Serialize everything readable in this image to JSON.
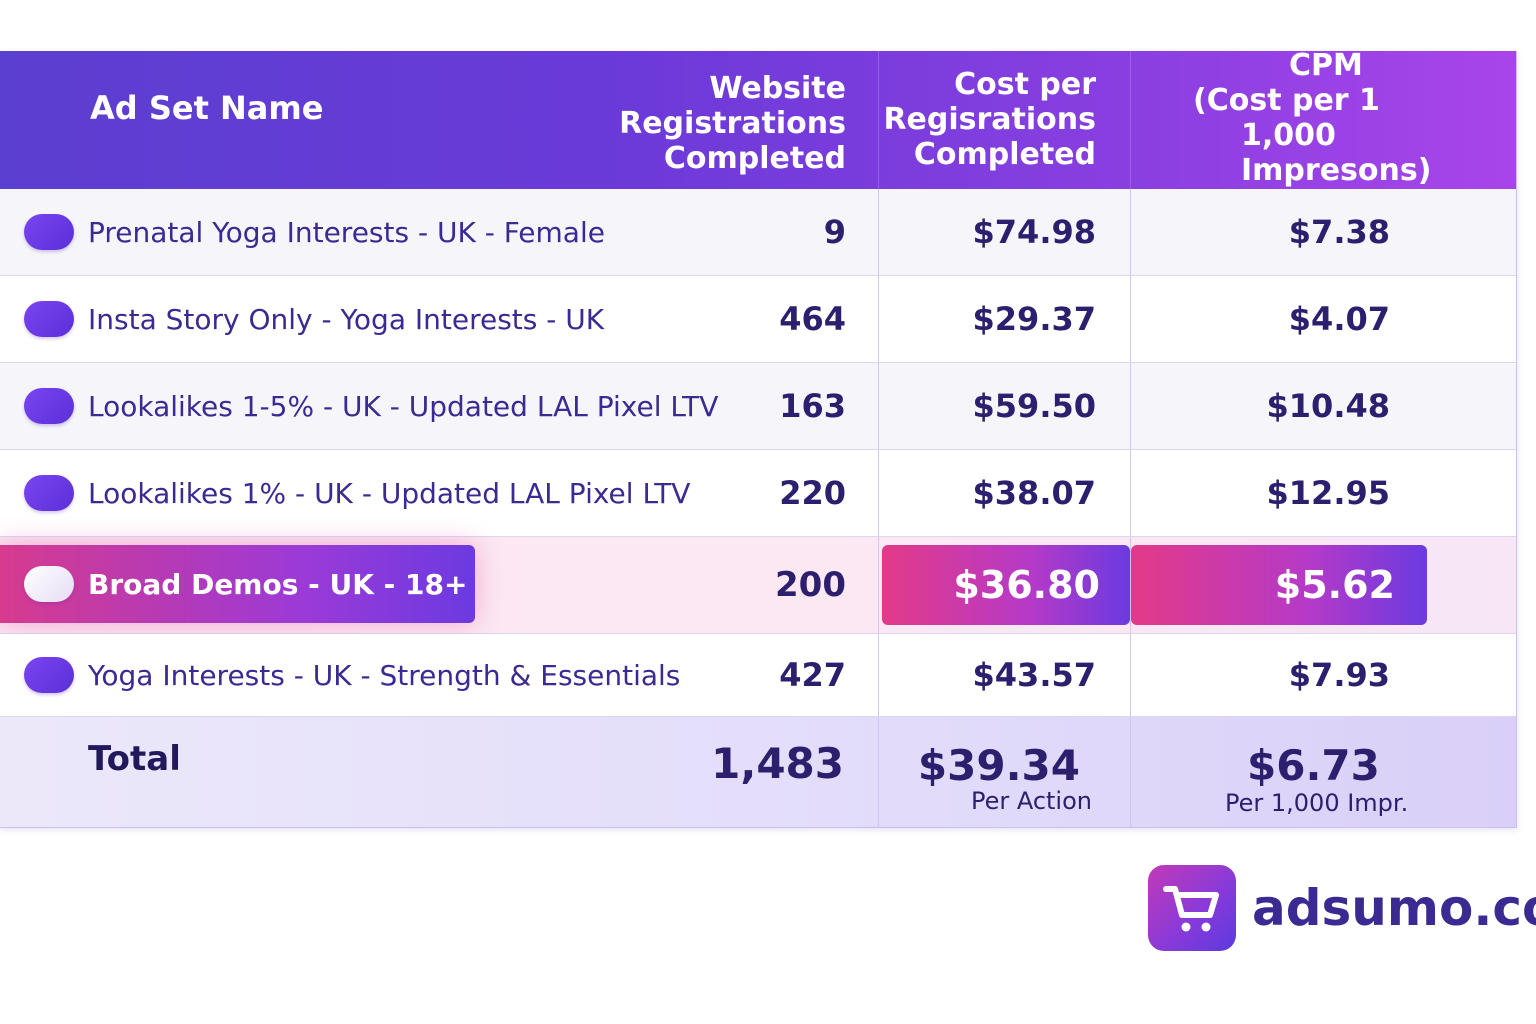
{
  "header": {
    "ad_set_name": "Ad Set Name",
    "registrations": [
      "Website",
      "Registrations",
      "Completed"
    ],
    "cost_per_reg": [
      "Cost per",
      "Regisrations",
      "Completed"
    ],
    "cpm": [
      "CPM",
      "(Cost per 1",
      "1,000 Impresons)"
    ]
  },
  "rows": [
    {
      "name": "Prenatal Yoga Interests - UK - Female",
      "registrations": "9",
      "cost_per_reg": "$74.98",
      "cpm": "$7.38"
    },
    {
      "name": "Insta Story Only - Yoga Interests - UK",
      "registrations": "464",
      "cost_per_reg": "$29.37",
      "cpm": "$4.07"
    },
    {
      "name": "Lookalikes 1-5% - UK - Updated LAL Pixel LTV",
      "registrations": "163",
      "cost_per_reg": "$59.50",
      "cpm": "$10.48"
    },
    {
      "name": "Lookalikes 1% - UK - Updated LAL Pixel LTV",
      "registrations": "220",
      "cost_per_reg": "$38.07",
      "cpm": "$12.95"
    },
    {
      "name": "Broad Demos - UK - 18+",
      "registrations": "200",
      "cost_per_reg": "$36.80",
      "cpm": "$5.62"
    },
    {
      "name": "Yoga Interests - UK - Strength & Essentials",
      "registrations": "427",
      "cost_per_reg": "$43.57",
      "cpm": "$7.93"
    }
  ],
  "total": {
    "label": "Total",
    "registrations": "1,483",
    "cost_per_reg": "$39.34",
    "cost_per_reg_sub": "Per Action",
    "cpm": "$6.73",
    "cpm_sub": "Per 1,000 Impr."
  },
  "logo": {
    "icon": "shopping-cart-icon",
    "text": "adsumo.co"
  },
  "colors": {
    "accent": "#6a3ad8",
    "highlight": "#d63b8e",
    "text": "#2b1f6e"
  }
}
